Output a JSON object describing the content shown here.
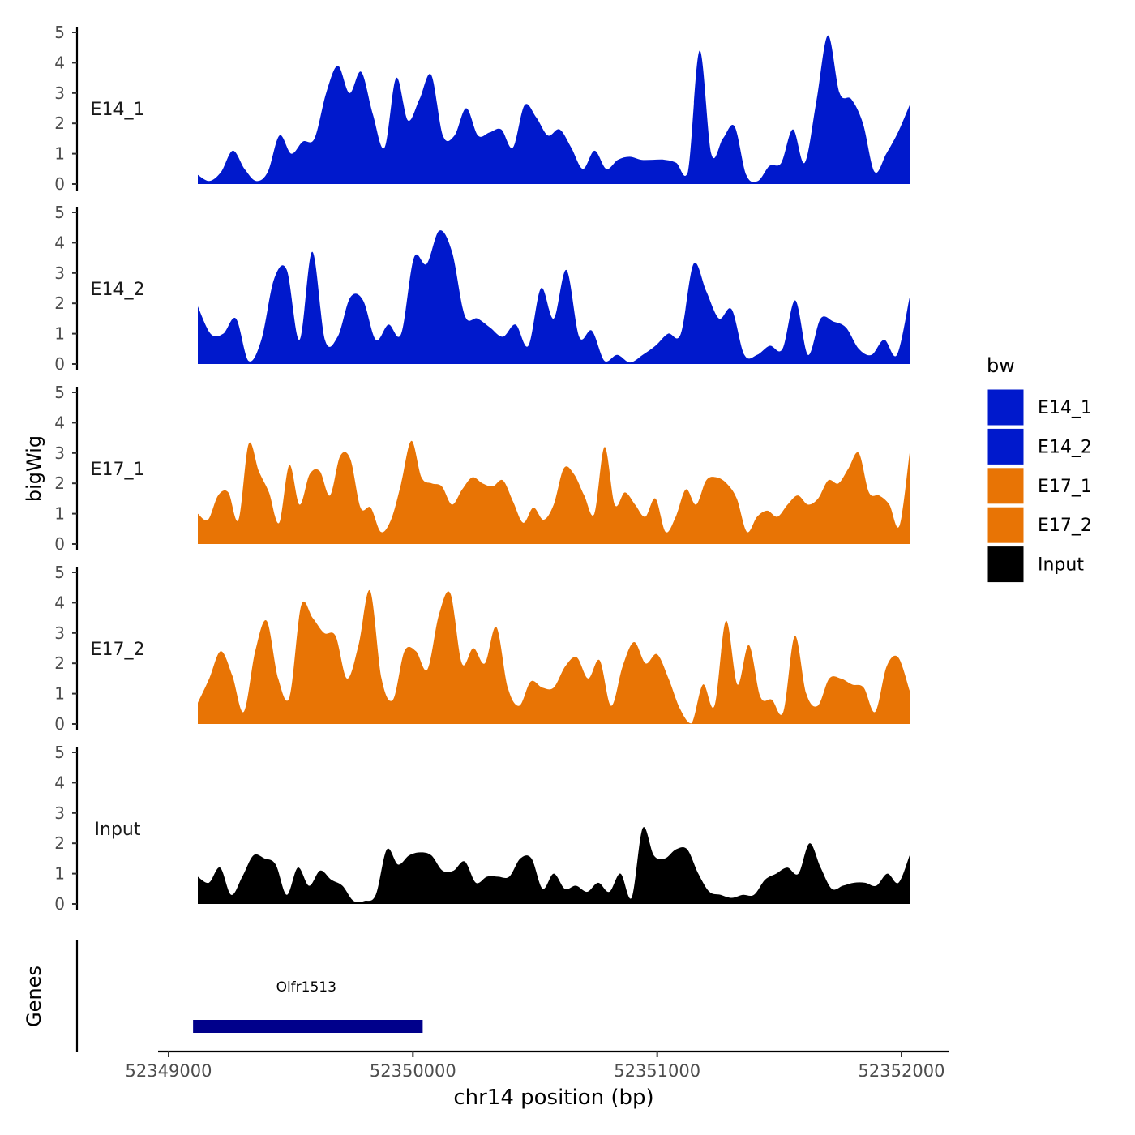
{
  "chart_data": {
    "type": "area",
    "subtype": "genome-coverage-tracks",
    "title": "",
    "ylabel": "bigWig",
    "xlabel": "chr14 position (bp)",
    "gene_panel_label": "Genes",
    "xlim": [
      52349000,
      52352000
    ],
    "x_ticks": [
      52349000,
      52350000,
      52351000,
      52352000
    ],
    "x_tick_labels": [
      "52349000",
      "52350000",
      "52351000",
      "52352000"
    ],
    "ylim": [
      0,
      5
    ],
    "y_ticks": [
      0,
      1,
      2,
      3,
      4,
      5
    ],
    "y_tick_labels": [
      "0",
      "1",
      "2",
      "3",
      "4",
      "5"
    ],
    "legend": {
      "title": "bw",
      "position": "right",
      "items": [
        {
          "label": "E14_1",
          "color": "#0019CC"
        },
        {
          "label": "E14_2",
          "color": "#0019CC"
        },
        {
          "label": "E17_1",
          "color": "#E87405"
        },
        {
          "label": "E17_2",
          "color": "#E87405"
        },
        {
          "label": "Input",
          "color": "#000000"
        }
      ]
    },
    "x_sampling": {
      "start": 52349120,
      "step": 60
    },
    "series": [
      {
        "name": "E14_1",
        "color": "#0019CC",
        "values": [
          0.3,
          0.1,
          0.4,
          1.1,
          0.5,
          0.1,
          0.4,
          1.6,
          1.0,
          1.4,
          1.5,
          3.0,
          3.9,
          3.0,
          3.7,
          2.3,
          1.2,
          3.5,
          2.1,
          2.8,
          3.6,
          1.6,
          1.6,
          2.5,
          1.6,
          1.7,
          1.8,
          1.2,
          2.6,
          2.2,
          1.6,
          1.8,
          1.2,
          0.5,
          1.1,
          0.5,
          0.8,
          0.9,
          0.8,
          0.8,
          0.8,
          0.7,
          0.4,
          4.4,
          1.0,
          1.5,
          1.9,
          0.3,
          0.1,
          0.6,
          0.7,
          1.8,
          0.7,
          2.7,
          4.9,
          3.0,
          2.8,
          2.0,
          0.4,
          1.0,
          1.7,
          2.6
        ]
      },
      {
        "name": "E14_2",
        "color": "#0019CC",
        "values": [
          1.9,
          1.0,
          1.0,
          1.5,
          0.1,
          0.8,
          2.8,
          3.1,
          0.8,
          3.7,
          0.8,
          0.9,
          2.2,
          2.1,
          0.8,
          1.3,
          1.0,
          3.5,
          3.3,
          4.4,
          3.7,
          1.6,
          1.5,
          1.2,
          0.9,
          1.3,
          0.6,
          2.5,
          1.5,
          3.1,
          0.9,
          1.1,
          0.1,
          0.3,
          0.05,
          0.3,
          0.6,
          1.0,
          1.0,
          3.3,
          2.4,
          1.5,
          1.8,
          0.3,
          0.3,
          0.6,
          0.5,
          2.1,
          0.3,
          1.5,
          1.4,
          1.2,
          0.5,
          0.3,
          0.8,
          0.3,
          2.2
        ]
      },
      {
        "name": "E17_1",
        "color": "#E87405",
        "values": [
          1.0,
          0.8,
          1.6,
          1.7,
          0.8,
          3.3,
          2.4,
          1.7,
          0.7,
          2.6,
          1.3,
          2.3,
          2.4,
          1.6,
          2.9,
          2.8,
          1.2,
          1.2,
          0.4,
          0.8,
          2.0,
          3.4,
          2.2,
          2.0,
          1.9,
          1.3,
          1.8,
          2.2,
          2.0,
          1.9,
          2.1,
          1.4,
          0.7,
          1.2,
          0.8,
          1.3,
          2.5,
          2.3,
          1.6,
          1.0,
          3.2,
          1.3,
          1.7,
          1.3,
          0.9,
          1.5,
          0.4,
          0.9,
          1.8,
          1.3,
          2.1,
          2.2,
          2.0,
          1.5,
          0.4,
          0.9,
          1.1,
          0.9,
          1.3,
          1.6,
          1.3,
          1.5,
          2.1,
          2.0,
          2.5,
          3.0,
          1.7,
          1.6,
          1.3,
          0.6,
          3.0
        ]
      },
      {
        "name": "E17_2",
        "color": "#E87405",
        "values": [
          0.7,
          1.5,
          2.4,
          1.6,
          0.4,
          2.4,
          3.4,
          1.5,
          0.9,
          3.9,
          3.5,
          3.0,
          2.9,
          1.5,
          2.6,
          4.4,
          1.5,
          0.8,
          2.4,
          2.4,
          1.8,
          3.6,
          4.3,
          2.0,
          2.5,
          2.0,
          3.2,
          1.2,
          0.6,
          1.4,
          1.2,
          1.2,
          1.9,
          2.2,
          1.5,
          2.1,
          0.6,
          1.9,
          2.7,
          2.0,
          2.3,
          1.5,
          0.5,
          0.02,
          1.3,
          0.6,
          3.4,
          1.3,
          2.6,
          0.9,
          0.8,
          0.4,
          2.9,
          1.0,
          0.6,
          1.5,
          1.5,
          1.3,
          1.2,
          0.4,
          1.9,
          2.2,
          1.1
        ]
      },
      {
        "name": "Input",
        "color": "#000000",
        "values": [
          0.9,
          0.7,
          1.2,
          0.3,
          0.9,
          1.6,
          1.5,
          1.3,
          0.3,
          1.2,
          0.6,
          1.1,
          0.8,
          0.6,
          0.1,
          0.1,
          0.3,
          1.8,
          1.3,
          1.6,
          1.7,
          1.6,
          1.1,
          1.1,
          1.4,
          0.7,
          0.9,
          0.9,
          0.9,
          1.5,
          1.5,
          0.5,
          1.0,
          0.5,
          0.6,
          0.4,
          0.7,
          0.4,
          1.0,
          0.2,
          2.5,
          1.6,
          1.5,
          1.8,
          1.8,
          1.0,
          0.4,
          0.3,
          0.2,
          0.3,
          0.3,
          0.8,
          1.0,
          1.2,
          1.0,
          2.0,
          1.2,
          0.5,
          0.6,
          0.7,
          0.7,
          0.6,
          1.0,
          0.7,
          1.6
        ]
      }
    ],
    "genes": [
      {
        "name": "Olfr1513",
        "start": 52349100,
        "end": 52350040,
        "color": "#00008B"
      }
    ]
  }
}
